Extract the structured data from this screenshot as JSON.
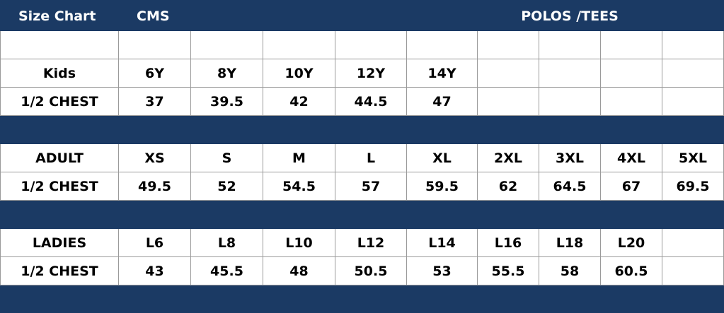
{
  "header": {
    "title": "Size Chart",
    "brand": "CMS",
    "category": "POLOS /TEES"
  },
  "sections": [
    {
      "label": "Kids",
      "sizes": [
        "6Y",
        "8Y",
        "10Y",
        "12Y",
        "14Y"
      ],
      "measure": "1/2 CHEST",
      "chest": [
        37,
        39.5,
        42,
        44.5,
        47
      ]
    },
    {
      "label": "ADULT",
      "sizes": [
        "XS",
        "S",
        "M",
        "L",
        "XL",
        "2XL",
        "3XL",
        "4XL",
        "5XL"
      ],
      "measure": "1/2 CHEST",
      "chest": [
        49.5,
        52,
        54.5,
        57,
        59.5,
        62,
        64.5,
        67,
        69.5
      ]
    },
    {
      "label": "LADIES",
      "sizes": [
        "L6",
        "L8",
        "L10",
        "L12",
        "L14",
        "L16",
        "L18",
        "L20"
      ],
      "measure": "1/2 CHEST",
      "chest": [
        43,
        45.5,
        48,
        50.5,
        53,
        55.5,
        58,
        60.5
      ]
    }
  ]
}
